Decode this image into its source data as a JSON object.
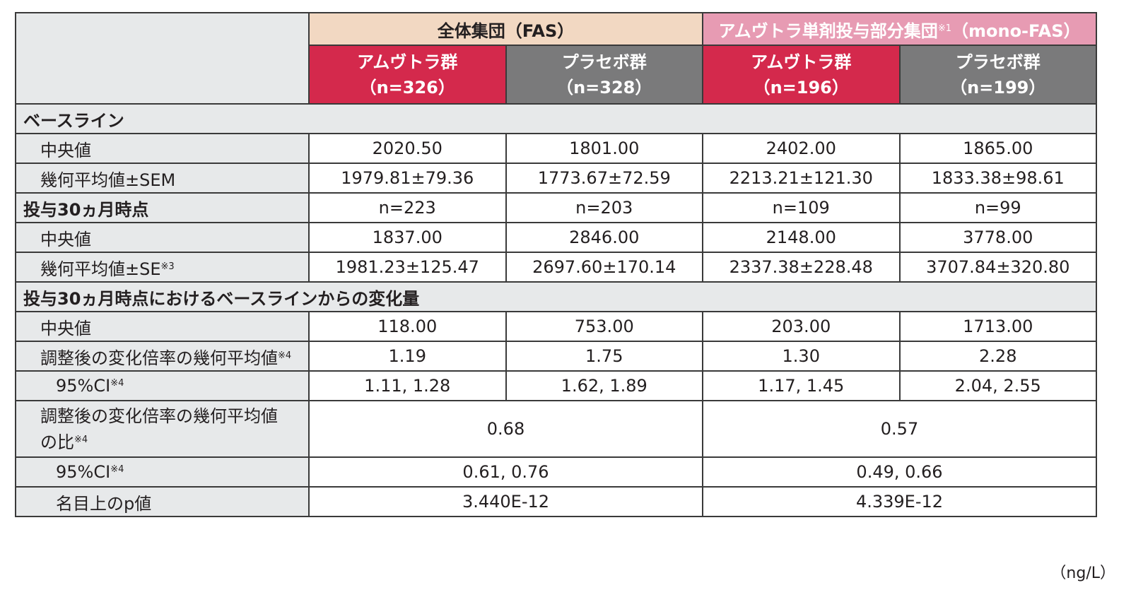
{
  "header": {
    "group_fas": "全体集団（FAS）",
    "group_mono": "アムヴトラ単剤投与部分集団",
    "group_mono_note": "※1",
    "group_mono_suffix": "（mono-FAS）",
    "arms": [
      {
        "name": "アムヴトラ群",
        "n": "（n=326）"
      },
      {
        "name": "プラセボ群",
        "n": "（n=328）"
      },
      {
        "name": "アムヴトラ群",
        "n": "（n=196）"
      },
      {
        "name": "プラセボ群",
        "n": "（n=199）"
      }
    ]
  },
  "sections": {
    "baseline": "ベースライン",
    "month30": "投与30ヵ月時点",
    "change": "投与30ヵ月時点におけるベースラインからの変化量"
  },
  "rows": {
    "baseline_median": {
      "label": "中央値",
      "values": [
        "2020.50",
        "1801.00",
        "2402.00",
        "1865.00"
      ]
    },
    "baseline_geomean": {
      "label": "幾何平均値±SEM",
      "values": [
        "1979.81±79.36",
        "1773.67±72.59",
        "2213.21±121.30",
        "1833.38±98.61"
      ]
    },
    "month30_n": {
      "values": [
        "n=223",
        "n=203",
        "n=109",
        "n=99"
      ]
    },
    "month30_median": {
      "label": "中央値",
      "values": [
        "1837.00",
        "2846.00",
        "2148.00",
        "3778.00"
      ]
    },
    "month30_geomean": {
      "label": "幾何平均値±SE",
      "note": "※3",
      "values": [
        "1981.23±125.47",
        "2697.60±170.14",
        "2337.38±228.48",
        "3707.84±320.80"
      ]
    },
    "change_median": {
      "label": "中央値",
      "values": [
        "118.00",
        "753.00",
        "203.00",
        "1713.00"
      ]
    },
    "change_ratio": {
      "label": "調整後の変化倍率の幾何平均値",
      "note": "※4",
      "values": [
        "1.19",
        "1.75",
        "1.30",
        "2.28"
      ]
    },
    "change_ratio_ci": {
      "label": "95%CI",
      "note": "※4",
      "values": [
        "1.11, 1.28",
        "1.62, 1.89",
        "1.17, 1.45",
        "2.04, 2.55"
      ]
    },
    "ratio_of_ratio": {
      "label_line1": "調整後の変化倍率の幾何平均値",
      "label_line2": "の比",
      "note": "※4",
      "values": [
        "0.68",
        "0.57"
      ]
    },
    "ratio_of_ratio_ci": {
      "label": "95%CI",
      "note": "※4",
      "values": [
        "0.61, 0.76",
        "0.49, 0.66"
      ]
    },
    "pvalue": {
      "label": "名目上のp値",
      "values": [
        "3.440E-12",
        "4.339E-12"
      ]
    }
  },
  "unit": "（ng/L）",
  "colors": {
    "drug_arm": "#d4294c",
    "placebo_arm": "#7a7a7b",
    "fas_header": "#f2d8c2",
    "mono_header": "#e79bb3",
    "label_bg": "#e7e9ea"
  }
}
